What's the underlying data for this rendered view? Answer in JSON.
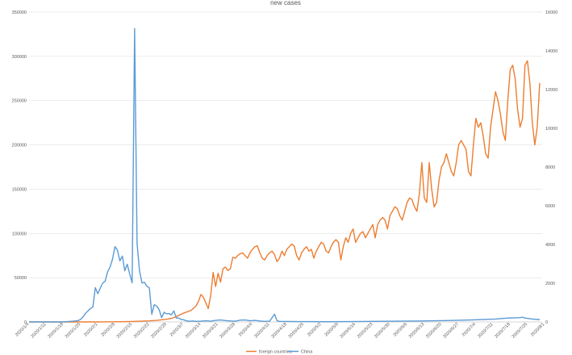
{
  "chart_data": {
    "type": "line",
    "title": "new cases",
    "xlabel": "",
    "ylabel": "",
    "ylim_left": [
      0,
      350000
    ],
    "ylim_right": [
      0,
      16000
    ],
    "y_ticks_left": [
      "0",
      "50000",
      "100000",
      "150000",
      "200000",
      "250000",
      "300000",
      "350000"
    ],
    "y_ticks_right": [
      "0",
      "2000",
      "4000",
      "6000",
      "8000",
      "10000",
      "12000",
      "14000",
      "16000"
    ],
    "x_tick_labels": [
      "2020/1/4",
      "2020/1/11",
      "2020/1/18",
      "2020/1/25",
      "2020/2/1",
      "2020/2/8",
      "2020/2/15",
      "2020/2/22",
      "2020/2/29",
      "2020/3/7",
      "2020/3/14",
      "2020/3/21",
      "2020/3/28",
      "2020/4/4",
      "2020/4/11",
      "2020/4/18",
      "2020/4/25",
      "2020/5/2",
      "2020/5/9",
      "2020/5/16",
      "2020/5/23",
      "2020/5/30",
      "2020/6/6",
      "2020/6/13",
      "2020/6/20",
      "2020/6/27",
      "2020/7/4",
      "2020/7/11",
      "2020/7/18",
      "2020/7/25",
      "2020/8/1"
    ],
    "grid": true,
    "legend_position": "bottom",
    "series": [
      {
        "name": "foreign countries",
        "axis": "left",
        "color": "#ED7D31",
        "points": [
          [
            0,
            0
          ],
          [
            28,
            0
          ],
          [
            35,
            200
          ],
          [
            42,
            500
          ],
          [
            49,
            1200
          ],
          [
            52,
            1800
          ],
          [
            56,
            3000
          ],
          [
            58,
            4000
          ],
          [
            60,
            6000
          ],
          [
            63,
            10000
          ],
          [
            66,
            13000
          ],
          [
            68,
            18000
          ],
          [
            69,
            23000
          ],
          [
            70,
            31000
          ],
          [
            71,
            28000
          ],
          [
            73,
            15000
          ],
          [
            74,
            30000
          ],
          [
            75,
            56000
          ],
          [
            76,
            40000
          ],
          [
            77,
            55000
          ],
          [
            78,
            45000
          ],
          [
            79,
            60000
          ],
          [
            80,
            62000
          ],
          [
            81,
            58000
          ],
          [
            82,
            60000
          ],
          [
            83,
            73000
          ],
          [
            84,
            72000
          ],
          [
            85,
            75000
          ],
          [
            86,
            77000
          ],
          [
            87,
            78000
          ],
          [
            88,
            75000
          ],
          [
            89,
            72000
          ],
          [
            90,
            78000
          ],
          [
            91,
            82000
          ],
          [
            92,
            85000
          ],
          [
            93,
            86000
          ],
          [
            94,
            78000
          ],
          [
            95,
            72000
          ],
          [
            96,
            70000
          ],
          [
            97,
            75000
          ],
          [
            98,
            78000
          ],
          [
            99,
            80000
          ],
          [
            100,
            76000
          ],
          [
            101,
            68000
          ],
          [
            102,
            72000
          ],
          [
            103,
            80000
          ],
          [
            104,
            75000
          ],
          [
            105,
            82000
          ],
          [
            106,
            85000
          ],
          [
            107,
            88000
          ],
          [
            108,
            86000
          ],
          [
            109,
            75000
          ],
          [
            110,
            70000
          ],
          [
            111,
            78000
          ],
          [
            112,
            82000
          ],
          [
            113,
            85000
          ],
          [
            114,
            80000
          ],
          [
            115,
            82000
          ],
          [
            116,
            72000
          ],
          [
            117,
            80000
          ],
          [
            118,
            85000
          ],
          [
            119,
            90000
          ],
          [
            120,
            88000
          ],
          [
            121,
            80000
          ],
          [
            122,
            78000
          ],
          [
            123,
            85000
          ],
          [
            124,
            90000
          ],
          [
            125,
            93000
          ],
          [
            126,
            90000
          ],
          [
            127,
            70000
          ],
          [
            128,
            85000
          ],
          [
            129,
            95000
          ],
          [
            130,
            90000
          ],
          [
            131,
            100000
          ],
          [
            132,
            105000
          ],
          [
            133,
            90000
          ],
          [
            134,
            95000
          ],
          [
            135,
            100000
          ],
          [
            136,
            102000
          ],
          [
            137,
            95000
          ],
          [
            138,
            100000
          ],
          [
            139,
            105000
          ],
          [
            140,
            110000
          ],
          [
            141,
            95000
          ],
          [
            142,
            110000
          ],
          [
            143,
            115000
          ],
          [
            144,
            118000
          ],
          [
            145,
            115000
          ],
          [
            146,
            105000
          ],
          [
            147,
            120000
          ],
          [
            148,
            125000
          ],
          [
            149,
            130000
          ],
          [
            150,
            128000
          ],
          [
            151,
            120000
          ],
          [
            152,
            115000
          ],
          [
            153,
            125000
          ],
          [
            154,
            135000
          ],
          [
            155,
            140000
          ],
          [
            156,
            138000
          ],
          [
            157,
            130000
          ],
          [
            158,
            125000
          ],
          [
            159,
            145000
          ],
          [
            160,
            180000
          ],
          [
            161,
            140000
          ],
          [
            162,
            135000
          ],
          [
            163,
            180000
          ],
          [
            164,
            150000
          ],
          [
            165,
            130000
          ],
          [
            166,
            135000
          ],
          [
            167,
            160000
          ],
          [
            168,
            175000
          ],
          [
            169,
            180000
          ],
          [
            170,
            190000
          ],
          [
            171,
            180000
          ],
          [
            172,
            170000
          ],
          [
            173,
            165000
          ],
          [
            174,
            180000
          ],
          [
            175,
            200000
          ],
          [
            176,
            205000
          ],
          [
            177,
            200000
          ],
          [
            178,
            195000
          ],
          [
            179,
            170000
          ],
          [
            180,
            165000
          ],
          [
            181,
            200000
          ],
          [
            182,
            230000
          ],
          [
            183,
            220000
          ],
          [
            184,
            225000
          ],
          [
            185,
            210000
          ],
          [
            186,
            190000
          ],
          [
            187,
            185000
          ],
          [
            188,
            220000
          ],
          [
            189,
            240000
          ],
          [
            190,
            260000
          ],
          [
            191,
            250000
          ],
          [
            192,
            235000
          ],
          [
            193,
            215000
          ],
          [
            194,
            205000
          ],
          [
            195,
            250000
          ],
          [
            196,
            285000
          ],
          [
            197,
            290000
          ],
          [
            198,
            275000
          ],
          [
            199,
            240000
          ],
          [
            200,
            220000
          ],
          [
            201,
            230000
          ],
          [
            202,
            290000
          ],
          [
            203,
            295000
          ],
          [
            204,
            270000
          ],
          [
            205,
            225000
          ],
          [
            206,
            200000
          ],
          [
            207,
            220000
          ],
          [
            208,
            270000
          ]
        ]
      },
      {
        "name": "China",
        "axis": "right",
        "color": "#5B9BD5",
        "points": [
          [
            0,
            0
          ],
          [
            14,
            0
          ],
          [
            18,
            40
          ],
          [
            20,
            70
          ],
          [
            21,
            130
          ],
          [
            22,
            260
          ],
          [
            23,
            440
          ],
          [
            24,
            570
          ],
          [
            25,
            690
          ],
          [
            26,
            770
          ],
          [
            27,
            1770
          ],
          [
            28,
            1460
          ],
          [
            29,
            1740
          ],
          [
            30,
            2010
          ],
          [
            31,
            2100
          ],
          [
            32,
            2590
          ],
          [
            33,
            2830
          ],
          [
            34,
            3240
          ],
          [
            35,
            3890
          ],
          [
            36,
            3700
          ],
          [
            37,
            3150
          ],
          [
            38,
            3400
          ],
          [
            39,
            2640
          ],
          [
            40,
            2980
          ],
          [
            41,
            2470
          ],
          [
            42,
            2020
          ],
          [
            43,
            15150
          ],
          [
            44,
            4050
          ],
          [
            45,
            2640
          ],
          [
            46,
            2010
          ],
          [
            47,
            2050
          ],
          [
            48,
            1840
          ],
          [
            49,
            1760
          ],
          [
            50,
            390
          ],
          [
            51,
            890
          ],
          [
            52,
            820
          ],
          [
            53,
            630
          ],
          [
            54,
            220
          ],
          [
            55,
            500
          ],
          [
            56,
            420
          ],
          [
            57,
            430
          ],
          [
            58,
            370
          ],
          [
            59,
            570
          ],
          [
            60,
            200
          ],
          [
            61,
            200
          ],
          [
            62,
            125
          ],
          [
            63,
            110
          ],
          [
            64,
            60
          ],
          [
            65,
            40
          ],
          [
            66,
            40
          ],
          [
            67,
            50
          ],
          [
            68,
            30
          ],
          [
            70,
            40
          ],
          [
            72,
            60
          ],
          [
            74,
            40
          ],
          [
            76,
            80
          ],
          [
            78,
            100
          ],
          [
            80,
            70
          ],
          [
            82,
            50
          ],
          [
            84,
            40
          ],
          [
            86,
            90
          ],
          [
            88,
            100
          ],
          [
            90,
            60
          ],
          [
            92,
            80
          ],
          [
            94,
            50
          ],
          [
            96,
            30
          ],
          [
            98,
            40
          ],
          [
            100,
            400
          ],
          [
            101,
            60
          ],
          [
            102,
            30
          ],
          [
            110,
            20
          ],
          [
            120,
            10
          ],
          [
            130,
            20
          ],
          [
            140,
            30
          ],
          [
            150,
            40
          ],
          [
            160,
            50
          ],
          [
            170,
            70
          ],
          [
            180,
            100
          ],
          [
            190,
            150
          ],
          [
            195,
            200
          ],
          [
            200,
            220
          ],
          [
            201,
            240
          ],
          [
            202,
            200
          ],
          [
            205,
            150
          ],
          [
            208,
            120
          ]
        ]
      }
    ]
  }
}
